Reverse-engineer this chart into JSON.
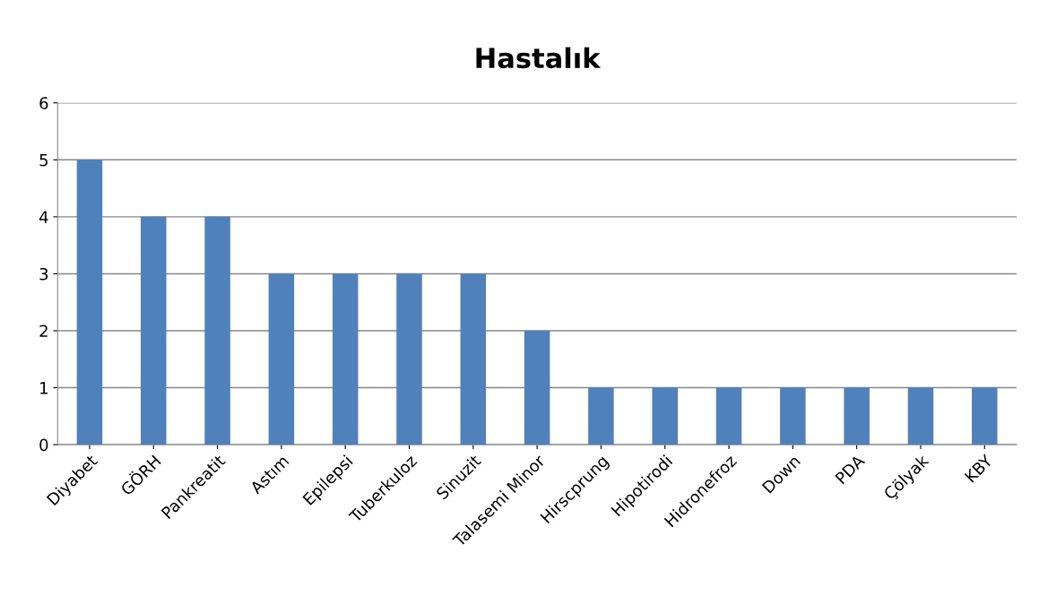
{
  "chart_data": {
    "type": "bar",
    "title": "Hastalık",
    "categories": [
      "Diyabet",
      "GÖRH",
      "Pankreatit",
      "Astım",
      "Epilepsi",
      "Tuberkuloz",
      "Sinuzit",
      "Talasemi Minor",
      "Hirscprung",
      "Hipotirodi",
      "Hidronefroz",
      "Down",
      "PDA",
      "Çölyak",
      "KBY"
    ],
    "values": [
      5,
      4,
      4,
      3,
      3,
      3,
      3,
      2,
      1,
      1,
      1,
      1,
      1,
      1,
      1
    ],
    "color": "#4f81bd",
    "ylim": [
      0,
      6
    ],
    "yticks": [
      0,
      1,
      2,
      3,
      4,
      5,
      6
    ],
    "grid": "y"
  }
}
